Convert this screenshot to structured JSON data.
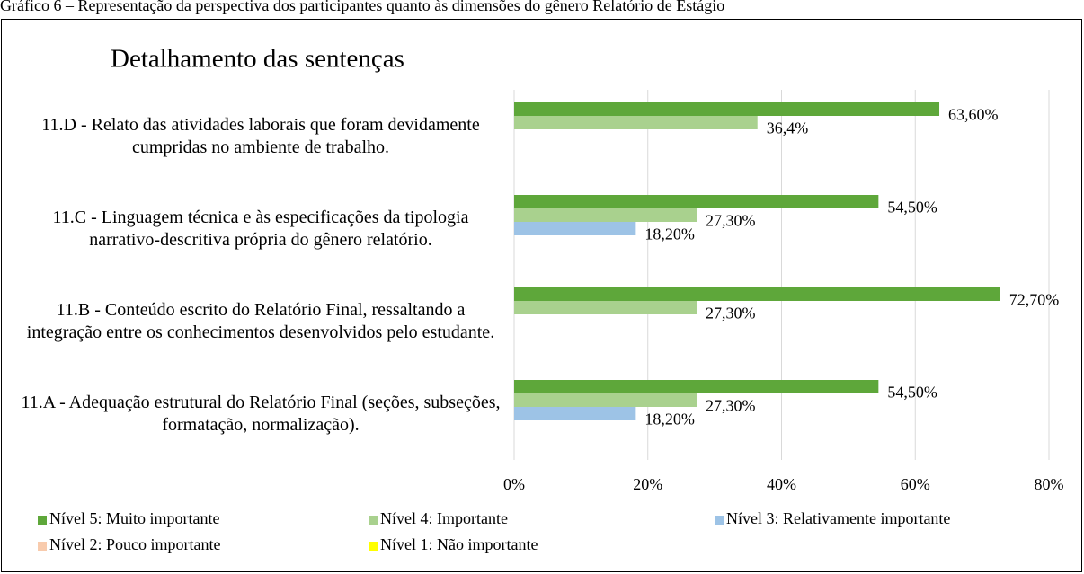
{
  "chart_data": {
    "type": "hbar",
    "caption": "Gráfico 6 – Representação da perspectiva dos participantes quanto às dimensões do gênero Relatório de Estágio",
    "title": "Detalhamento das sentenças",
    "categories": [
      "11.D - Relato das atividades laborais que foram devidamente cumpridas no ambiente de trabalho.",
      "11.C - Linguagem técnica e às especificações da tipologia narrativo-descritiva própria do gênero relatório.",
      "11.B - Conteúdo escrito do Relatório Final, ressaltando a integração entre os conhecimentos desenvolvidos pelo estudante.",
      "11.A - Adequação estrutural do Relatório Final (seções, subseções, formatação, normalização)."
    ],
    "series": [
      {
        "name": "Nível 5: Muito importante",
        "color": "#5ea73a",
        "values": [
          63.6,
          54.5,
          72.7,
          54.5
        ],
        "value_labels": [
          "63,60%",
          "54,50%",
          "72,70%",
          "54,50%"
        ]
      },
      {
        "name": "Nível 4: Importante",
        "color": "#a9d18e",
        "values": [
          36.4,
          27.3,
          27.3,
          27.3
        ],
        "value_labels": [
          "36,4%",
          "27,30%",
          "27,30%",
          "27,30%"
        ]
      },
      {
        "name": "Nível 3: Relativamente importante",
        "color": "#9dc3e6",
        "values": [
          null,
          18.2,
          null,
          18.2
        ],
        "value_labels": [
          null,
          "18,20%",
          null,
          "18,20%"
        ]
      },
      {
        "name": "Nível 2: Pouco importante",
        "color": "#f8cbad",
        "values": [
          null,
          null,
          null,
          null
        ]
      },
      {
        "name": "Nível 1: Não importante",
        "color": "#ffff00",
        "values": [
          null,
          null,
          null,
          null
        ]
      }
    ],
    "xlim": [
      0,
      80
    ],
    "xticks": [
      {
        "value": 0,
        "label": "0%"
      },
      {
        "value": 20,
        "label": "20%"
      },
      {
        "value": 40,
        "label": "40%"
      },
      {
        "value": 60,
        "label": "60%"
      },
      {
        "value": 80,
        "label": "80%"
      }
    ],
    "grid": true
  }
}
